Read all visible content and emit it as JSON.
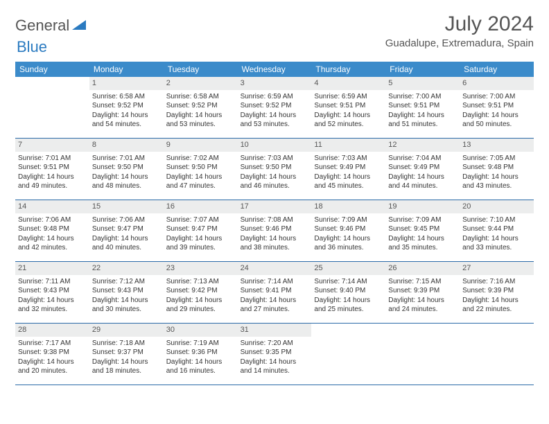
{
  "brand": {
    "word1": "General",
    "word2": "Blue"
  },
  "title": "July 2024",
  "location": "Guadalupe, Extremadura, Spain",
  "colors": {
    "header_bg": "#3b8bca",
    "header_text": "#ffffff",
    "rule": "#2a6aa8",
    "daynum_bg": "#eceded",
    "text": "#333333",
    "brand_gray": "#555555",
    "brand_blue": "#2a7ac0",
    "background": "#ffffff"
  },
  "weekdays": [
    "Sunday",
    "Monday",
    "Tuesday",
    "Wednesday",
    "Thursday",
    "Friday",
    "Saturday"
  ],
  "weeks": [
    [
      {
        "n": "",
        "sr": "",
        "ss": "",
        "dl": ""
      },
      {
        "n": "1",
        "sr": "6:58 AM",
        "ss": "9:52 PM",
        "dl": "14 hours and 54 minutes."
      },
      {
        "n": "2",
        "sr": "6:58 AM",
        "ss": "9:52 PM",
        "dl": "14 hours and 53 minutes."
      },
      {
        "n": "3",
        "sr": "6:59 AM",
        "ss": "9:52 PM",
        "dl": "14 hours and 53 minutes."
      },
      {
        "n": "4",
        "sr": "6:59 AM",
        "ss": "9:51 PM",
        "dl": "14 hours and 52 minutes."
      },
      {
        "n": "5",
        "sr": "7:00 AM",
        "ss": "9:51 PM",
        "dl": "14 hours and 51 minutes."
      },
      {
        "n": "6",
        "sr": "7:00 AM",
        "ss": "9:51 PM",
        "dl": "14 hours and 50 minutes."
      }
    ],
    [
      {
        "n": "7",
        "sr": "7:01 AM",
        "ss": "9:51 PM",
        "dl": "14 hours and 49 minutes."
      },
      {
        "n": "8",
        "sr": "7:01 AM",
        "ss": "9:50 PM",
        "dl": "14 hours and 48 minutes."
      },
      {
        "n": "9",
        "sr": "7:02 AM",
        "ss": "9:50 PM",
        "dl": "14 hours and 47 minutes."
      },
      {
        "n": "10",
        "sr": "7:03 AM",
        "ss": "9:50 PM",
        "dl": "14 hours and 46 minutes."
      },
      {
        "n": "11",
        "sr": "7:03 AM",
        "ss": "9:49 PM",
        "dl": "14 hours and 45 minutes."
      },
      {
        "n": "12",
        "sr": "7:04 AM",
        "ss": "9:49 PM",
        "dl": "14 hours and 44 minutes."
      },
      {
        "n": "13",
        "sr": "7:05 AM",
        "ss": "9:48 PM",
        "dl": "14 hours and 43 minutes."
      }
    ],
    [
      {
        "n": "14",
        "sr": "7:06 AM",
        "ss": "9:48 PM",
        "dl": "14 hours and 42 minutes."
      },
      {
        "n": "15",
        "sr": "7:06 AM",
        "ss": "9:47 PM",
        "dl": "14 hours and 40 minutes."
      },
      {
        "n": "16",
        "sr": "7:07 AM",
        "ss": "9:47 PM",
        "dl": "14 hours and 39 minutes."
      },
      {
        "n": "17",
        "sr": "7:08 AM",
        "ss": "9:46 PM",
        "dl": "14 hours and 38 minutes."
      },
      {
        "n": "18",
        "sr": "7:09 AM",
        "ss": "9:46 PM",
        "dl": "14 hours and 36 minutes."
      },
      {
        "n": "19",
        "sr": "7:09 AM",
        "ss": "9:45 PM",
        "dl": "14 hours and 35 minutes."
      },
      {
        "n": "20",
        "sr": "7:10 AM",
        "ss": "9:44 PM",
        "dl": "14 hours and 33 minutes."
      }
    ],
    [
      {
        "n": "21",
        "sr": "7:11 AM",
        "ss": "9:43 PM",
        "dl": "14 hours and 32 minutes."
      },
      {
        "n": "22",
        "sr": "7:12 AM",
        "ss": "9:43 PM",
        "dl": "14 hours and 30 minutes."
      },
      {
        "n": "23",
        "sr": "7:13 AM",
        "ss": "9:42 PM",
        "dl": "14 hours and 29 minutes."
      },
      {
        "n": "24",
        "sr": "7:14 AM",
        "ss": "9:41 PM",
        "dl": "14 hours and 27 minutes."
      },
      {
        "n": "25",
        "sr": "7:14 AM",
        "ss": "9:40 PM",
        "dl": "14 hours and 25 minutes."
      },
      {
        "n": "26",
        "sr": "7:15 AM",
        "ss": "9:39 PM",
        "dl": "14 hours and 24 minutes."
      },
      {
        "n": "27",
        "sr": "7:16 AM",
        "ss": "9:39 PM",
        "dl": "14 hours and 22 minutes."
      }
    ],
    [
      {
        "n": "28",
        "sr": "7:17 AM",
        "ss": "9:38 PM",
        "dl": "14 hours and 20 minutes."
      },
      {
        "n": "29",
        "sr": "7:18 AM",
        "ss": "9:37 PM",
        "dl": "14 hours and 18 minutes."
      },
      {
        "n": "30",
        "sr": "7:19 AM",
        "ss": "9:36 PM",
        "dl": "14 hours and 16 minutes."
      },
      {
        "n": "31",
        "sr": "7:20 AM",
        "ss": "9:35 PM",
        "dl": "14 hours and 14 minutes."
      },
      {
        "n": "",
        "sr": "",
        "ss": "",
        "dl": ""
      },
      {
        "n": "",
        "sr": "",
        "ss": "",
        "dl": ""
      },
      {
        "n": "",
        "sr": "",
        "ss": "",
        "dl": ""
      }
    ]
  ],
  "labels": {
    "sunrise": "Sunrise: ",
    "sunset": "Sunset: ",
    "daylight": "Daylight: "
  }
}
